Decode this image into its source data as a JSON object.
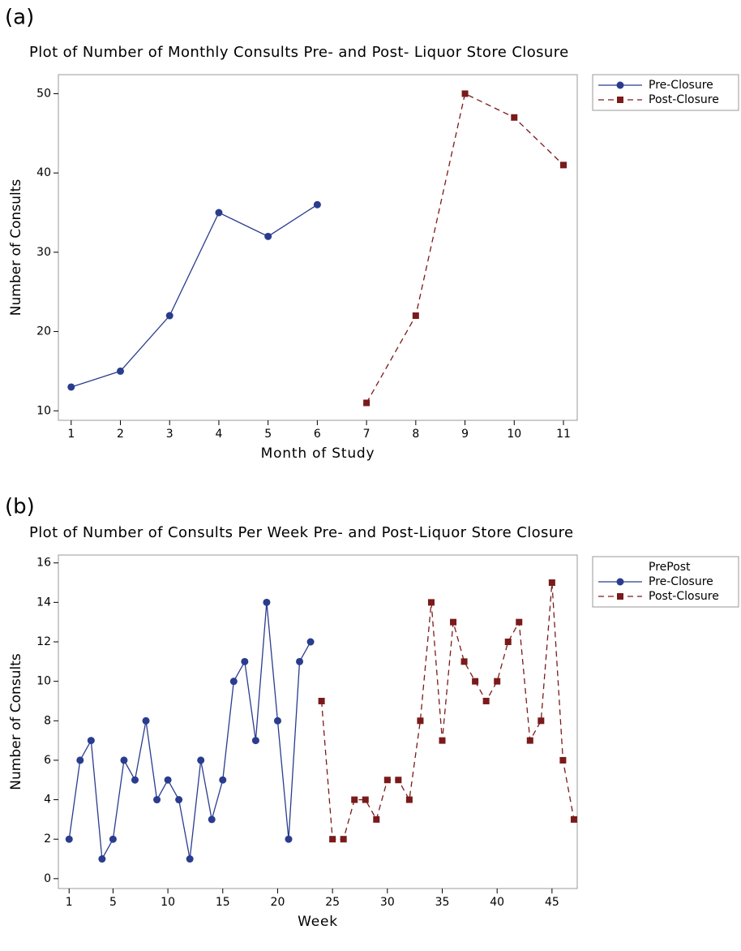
{
  "chart_data": [
    {
      "type": "line",
      "panel_label": "(a)",
      "title": "Plot of Number of Monthly Consults Pre- and Post- Liquor Store Closure",
      "xlabel": "Month of Study",
      "ylabel": "Number of Consults",
      "xlim": [
        0.74,
        11.28
      ],
      "ylim": [
        8.8,
        52.4
      ],
      "xticks": [
        1,
        2,
        3,
        4,
        5,
        6,
        7,
        8,
        9,
        10,
        11
      ],
      "yticks": [
        10,
        20,
        30,
        40,
        50
      ],
      "series": [
        {
          "name": "Pre-Closure",
          "color": "#2a3c8e",
          "marker": "circle",
          "dash": false,
          "x": [
            1,
            2,
            3,
            4,
            5,
            6
          ],
          "values": [
            13,
            15,
            22,
            35,
            32,
            36
          ]
        },
        {
          "name": "Post-Closure",
          "color": "#7a1a1a",
          "marker": "square",
          "dash": true,
          "x": [
            7,
            8,
            9,
            10,
            11
          ],
          "values": [
            11,
            22,
            50,
            47,
            41
          ]
        }
      ]
    },
    {
      "type": "line",
      "panel_label": "(b)",
      "title": "Plot of Number of Consults Per Week Pre- and Post-Liquor Store Closure",
      "xlabel": "Week",
      "ylabel": "Number of Consults",
      "legend_title": "PrePost",
      "xlim": [
        0.02,
        47.3
      ],
      "ylim": [
        -0.5,
        16.4
      ],
      "xticks": [
        1,
        5,
        10,
        15,
        20,
        25,
        30,
        35,
        40,
        45
      ],
      "yticks": [
        0,
        2,
        4,
        6,
        8,
        10,
        12,
        14,
        16
      ],
      "series": [
        {
          "name": "Pre-Closure",
          "color": "#2a3c8e",
          "marker": "circle",
          "dash": false,
          "x": [
            1,
            2,
            3,
            4,
            5,
            6,
            7,
            8,
            9,
            10,
            11,
            12,
            13,
            14,
            15,
            16,
            17,
            18,
            19,
            20,
            21,
            22,
            23
          ],
          "values": [
            2,
            6,
            7,
            1,
            2,
            6,
            5,
            8,
            4,
            5,
            4,
            1,
            6,
            3,
            5,
            10,
            11,
            7,
            14,
            8,
            2,
            11,
            12
          ]
        },
        {
          "name": "Post-Closure",
          "color": "#7a1a1a",
          "marker": "square",
          "dash": true,
          "x": [
            24,
            25,
            26,
            27,
            28,
            29,
            30,
            31,
            32,
            33,
            34,
            35,
            36,
            37,
            38,
            39,
            40,
            41,
            42,
            43,
            44,
            45,
            46,
            47
          ],
          "values": [
            9,
            2,
            2,
            4,
            4,
            3,
            5,
            5,
            4,
            8,
            14,
            7,
            13,
            11,
            10,
            9,
            10,
            12,
            13,
            7,
            8,
            15,
            6,
            3
          ]
        }
      ]
    }
  ]
}
